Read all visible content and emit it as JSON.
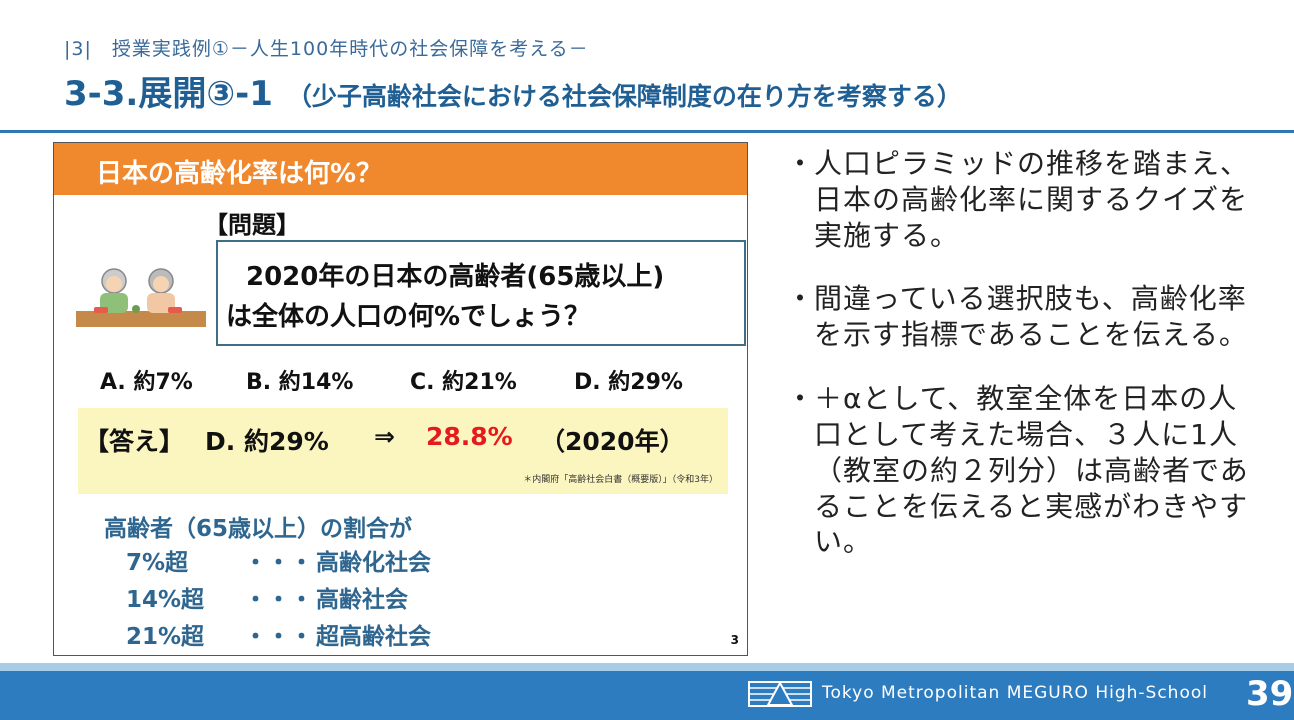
{
  "header": {
    "breadcrumb": "|3|　授業実践例①－人生100年時代の社会保障を考える－",
    "title": "3-3.展開③-1",
    "subtitle": "（少子高齢社会における社会保障制度の在り方を考察する）"
  },
  "slide": {
    "banner": "日本の高齢化率は何%？",
    "question_heading": "【問題】",
    "question_line1": "2020年の日本の高齢者(65歳以上)",
    "question_line2": "は全体の人口の何%でしょう？",
    "choices": [
      "A. 約7%",
      "B. 約14%",
      "C. 約21%",
      "D. 約29%"
    ],
    "answer_label": "【答え】",
    "answer_choice": "D. 約29%",
    "answer_arrow": "⇒",
    "answer_value": "28.8%",
    "answer_year": "（2020年）",
    "answer_source": "＊内閣府「高齢社会白書（概要版）」（令和3年）",
    "definition_title": "高齢者（65歳以上）の割合が",
    "definitions": [
      {
        "threshold": "7%超",
        "dots": "・・・",
        "term": "高齢化社会"
      },
      {
        "threshold": "14%超",
        "dots": "・・・",
        "term": "高齢社会"
      },
      {
        "threshold": "21%超",
        "dots": "・・・",
        "term": "超高齢社会"
      }
    ],
    "slide_number": "3",
    "colors": {
      "banner": "#f0882e",
      "answer_bg": "#fbf6c0",
      "highlight": "#e41a1c",
      "definition_text": "#2e6690"
    }
  },
  "bullets": [
    {
      "mark": "・",
      "text": "人口ピラミッドの推移を踏まえ、日本の高齢化率に関するクイズを実施する。"
    },
    {
      "mark": "・",
      "text": "間違っている選択肢も、高齢化率を示す指標であることを伝える。"
    },
    {
      "mark": "・",
      "text": "＋αとして、教室全体を日本の人口として考えた場合、３人に1人（教室の約２列分）は高齢者であることを伝えると実感がわきやすい。"
    }
  ],
  "footer": {
    "school": "Tokyo Metropolitan MEGURO High-School",
    "page": "39",
    "logo_icon": "school-emblem-icon"
  },
  "colors": {
    "title": "#1f5f94",
    "rule": "#2e78b7",
    "footer_bar": "#2e7cc0",
    "footer_top": "#a7cce6"
  }
}
